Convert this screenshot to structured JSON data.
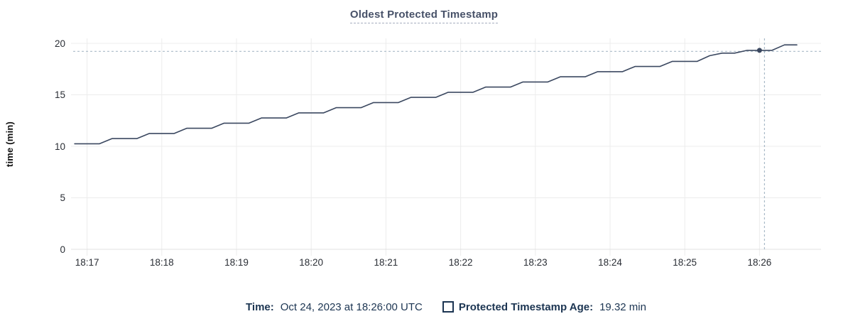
{
  "title": "Oldest Protected Timestamp",
  "colors": {
    "line": "#3b4860",
    "hover_dot": "#3b4860",
    "crosshair": "#a9bac8",
    "gridline": "#ececec",
    "zero_line": "#e0e0e0",
    "title_text": "#475168",
    "tick_text": "#2a2e35",
    "legend_text": "#1c3552"
  },
  "chart_data": {
    "type": "line",
    "title": "Oldest Protected Timestamp",
    "xlabel": "",
    "ylabel": "time (min)",
    "ylim": [
      0,
      20
    ],
    "yticks": [
      0,
      5,
      10,
      15,
      20
    ],
    "xticks": [
      "18:17",
      "18:18",
      "18:19",
      "18:20",
      "18:21",
      "18:22",
      "18:23",
      "18:24",
      "18:25",
      "18:26"
    ],
    "grid": true,
    "legend_position": "bottom",
    "sample_interval_sec": 10,
    "hover_point": {
      "time": "18:26:00",
      "value": 19.32
    },
    "crosshair": {
      "time": "18:26:04",
      "value": 19.22
    },
    "series": [
      {
        "name": "Protected Timestamp Age",
        "points": [
          [
            "18:16:50",
            10.25
          ],
          [
            "18:17:00",
            10.25
          ],
          [
            "18:17:10",
            10.25
          ],
          [
            "18:17:20",
            10.75
          ],
          [
            "18:17:30",
            10.75
          ],
          [
            "18:17:40",
            10.75
          ],
          [
            "18:17:50",
            11.25
          ],
          [
            "18:18:00",
            11.25
          ],
          [
            "18:18:10",
            11.25
          ],
          [
            "18:18:20",
            11.75
          ],
          [
            "18:18:30",
            11.75
          ],
          [
            "18:18:40",
            11.75
          ],
          [
            "18:18:50",
            12.25
          ],
          [
            "18:19:00",
            12.25
          ],
          [
            "18:19:10",
            12.25
          ],
          [
            "18:19:20",
            12.75
          ],
          [
            "18:19:30",
            12.75
          ],
          [
            "18:19:40",
            12.75
          ],
          [
            "18:19:50",
            13.25
          ],
          [
            "18:20:00",
            13.25
          ],
          [
            "18:20:10",
            13.25
          ],
          [
            "18:20:20",
            13.75
          ],
          [
            "18:20:30",
            13.75
          ],
          [
            "18:20:40",
            13.75
          ],
          [
            "18:20:50",
            14.25
          ],
          [
            "18:21:00",
            14.25
          ],
          [
            "18:21:10",
            14.25
          ],
          [
            "18:21:20",
            14.75
          ],
          [
            "18:21:30",
            14.75
          ],
          [
            "18:21:40",
            14.75
          ],
          [
            "18:21:50",
            15.25
          ],
          [
            "18:22:00",
            15.25
          ],
          [
            "18:22:10",
            15.25
          ],
          [
            "18:22:20",
            15.75
          ],
          [
            "18:22:30",
            15.75
          ],
          [
            "18:22:40",
            15.75
          ],
          [
            "18:22:50",
            16.25
          ],
          [
            "18:23:00",
            16.25
          ],
          [
            "18:23:10",
            16.25
          ],
          [
            "18:23:20",
            16.75
          ],
          [
            "18:23:30",
            16.75
          ],
          [
            "18:23:40",
            16.75
          ],
          [
            "18:23:50",
            17.25
          ],
          [
            "18:24:00",
            17.25
          ],
          [
            "18:24:10",
            17.25
          ],
          [
            "18:24:20",
            17.75
          ],
          [
            "18:24:30",
            17.75
          ],
          [
            "18:24:40",
            17.75
          ],
          [
            "18:24:50",
            18.25
          ],
          [
            "18:25:00",
            18.25
          ],
          [
            "18:25:10",
            18.25
          ],
          [
            "18:25:20",
            18.8
          ],
          [
            "18:25:30",
            19.05
          ],
          [
            "18:25:40",
            19.05
          ],
          [
            "18:25:50",
            19.32
          ],
          [
            "18:26:00",
            19.32
          ],
          [
            "18:26:10",
            19.32
          ],
          [
            "18:26:20",
            19.85
          ],
          [
            "18:26:30",
            19.85
          ]
        ]
      }
    ]
  },
  "tooltip": {
    "time_label": "Time:",
    "time_value": "Oct 24, 2023 at 18:26:00 UTC",
    "series_label": "Protected Timestamp Age:",
    "series_value": "19.32 min"
  }
}
